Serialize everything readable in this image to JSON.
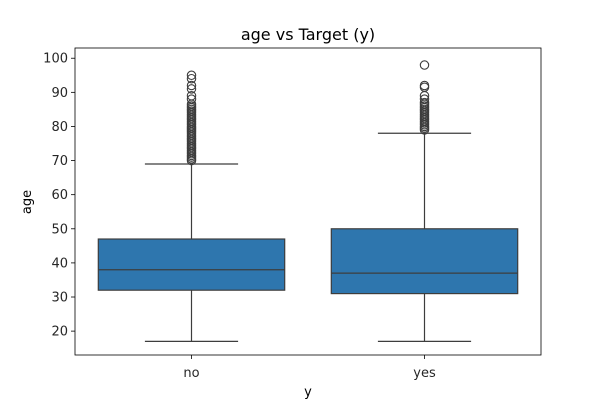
{
  "chart_data": {
    "type": "box",
    "title": "age vs Target (y)",
    "xlabel": "y",
    "ylabel": "age",
    "ylim": [
      13,
      103
    ],
    "yticks": [
      20,
      30,
      40,
      50,
      60,
      70,
      80,
      90,
      100
    ],
    "grid": false,
    "legend": "none",
    "box_color": "#2e76ae",
    "line_color": "#3d3d3d",
    "categories": [
      "no",
      "yes"
    ],
    "boxes": [
      {
        "category": "no",
        "whisker_low": 17,
        "q1": 32,
        "median": 38,
        "q3": 47,
        "whisker_high": 69,
        "outliers": [
          70,
          70.5,
          71,
          71.5,
          72,
          72.5,
          73,
          73.5,
          74,
          74.5,
          75,
          75.5,
          76,
          76.5,
          77,
          77.5,
          78,
          78.5,
          79,
          79.5,
          80,
          80.5,
          81,
          81.5,
          82,
          82.5,
          83,
          83.5,
          84,
          84.5,
          85,
          85.5,
          86,
          86.5,
          88,
          89,
          91,
          92,
          94,
          95
        ]
      },
      {
        "category": "yes",
        "whisker_low": 17,
        "q1": 31,
        "median": 37,
        "q3": 50,
        "whisker_high": 78,
        "outliers": [
          79,
          79.5,
          80,
          80.5,
          81,
          81.5,
          82,
          82.5,
          83,
          83.5,
          84,
          84.5,
          85,
          85.5,
          86,
          86.5,
          87,
          88,
          89,
          91.5,
          92,
          98
        ]
      }
    ]
  }
}
